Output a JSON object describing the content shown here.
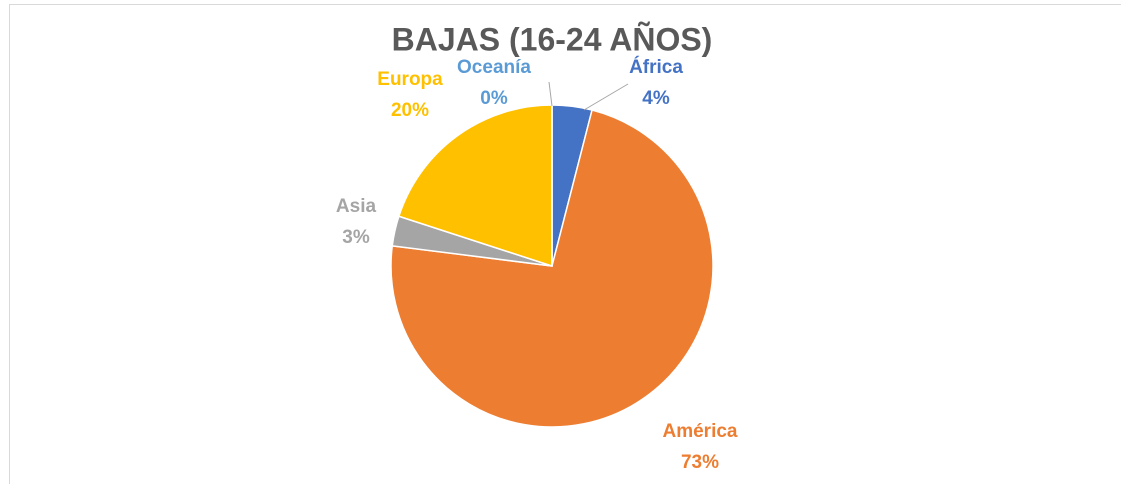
{
  "chart_data": {
    "type": "pie",
    "title": "BAJAS (16-24 AÑOS)",
    "categories": [
      "África",
      "América",
      "Asia",
      "Europa",
      "Oceanía"
    ],
    "values": [
      4,
      73,
      3,
      20,
      0
    ],
    "value_labels": [
      "4%",
      "73%",
      "3%",
      "20%",
      "0%"
    ],
    "colors": [
      "#4472c4",
      "#ed7d31",
      "#a5a5a5",
      "#ffc000",
      "#5b9bd5"
    ]
  }
}
